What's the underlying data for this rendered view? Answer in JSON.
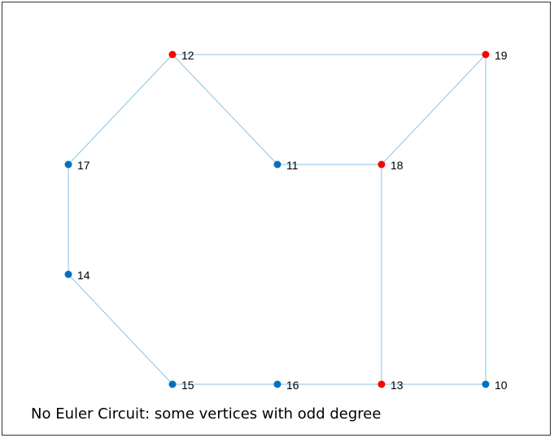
{
  "status_message": "No Euler Circuit: some vertices with odd degree",
  "colors": {
    "edge": "#8cc3e6",
    "vertex_even": "#0070c0",
    "vertex_odd": "#ff0000"
  },
  "vertices": [
    {
      "id": "12",
      "label": "12",
      "odd": true
    },
    {
      "id": "19",
      "label": "19",
      "odd": true
    },
    {
      "id": "17",
      "label": "17",
      "odd": false
    },
    {
      "id": "11",
      "label": "11",
      "odd": false
    },
    {
      "id": "18",
      "label": "18",
      "odd": true
    },
    {
      "id": "14",
      "label": "14",
      "odd": false
    },
    {
      "id": "15",
      "label": "15",
      "odd": false
    },
    {
      "id": "16",
      "label": "16",
      "odd": false
    },
    {
      "id": "13",
      "label": "13",
      "odd": true
    },
    {
      "id": "10",
      "label": "10",
      "odd": false
    }
  ],
  "edges": [
    [
      "12",
      "19"
    ],
    [
      "12",
      "17"
    ],
    [
      "12",
      "11"
    ],
    [
      "11",
      "18"
    ],
    [
      "18",
      "19"
    ],
    [
      "19",
      "10"
    ],
    [
      "18",
      "13"
    ],
    [
      "17",
      "14"
    ],
    [
      "14",
      "15"
    ],
    [
      "15",
      "16"
    ],
    [
      "16",
      "13"
    ],
    [
      "13",
      "10"
    ]
  ]
}
